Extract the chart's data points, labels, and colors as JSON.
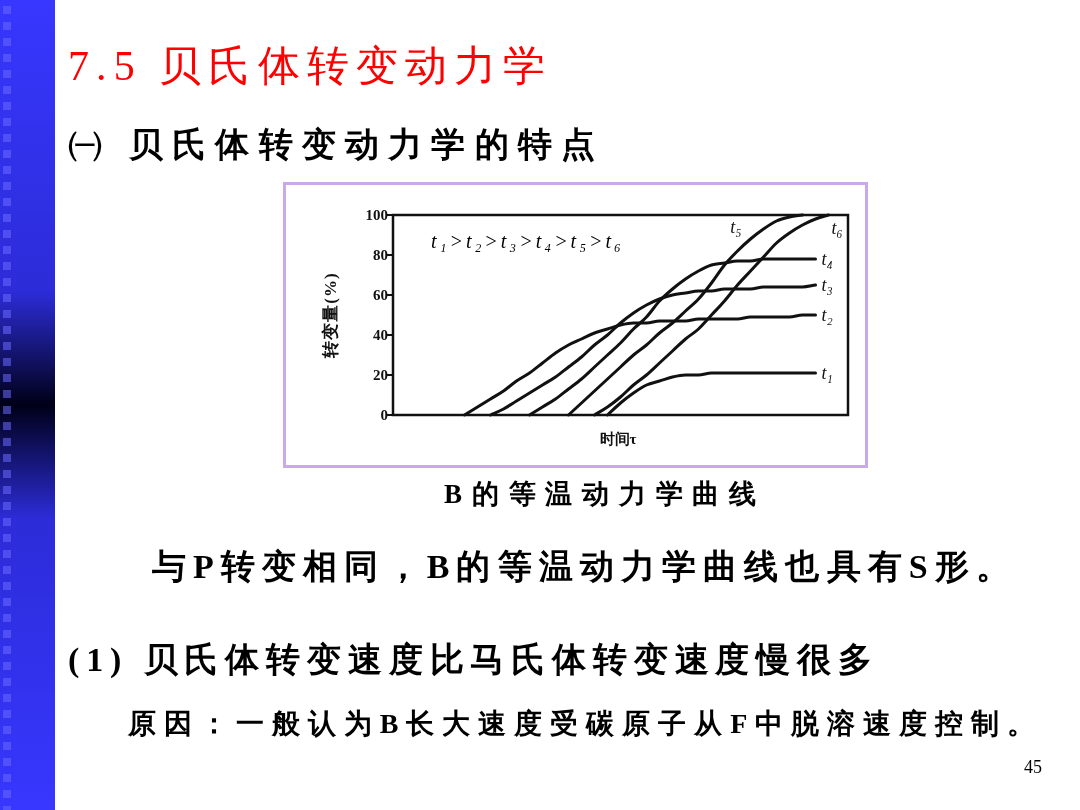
{
  "chart_data": {
    "type": "line",
    "title": "7.5 贝氏体转变动力学",
    "subtitle": "㈠ 贝氏体转变动力学的特点",
    "xlabel": "时间τ",
    "ylabel": "转变量(%)",
    "annotations": [
      "t₁>t₂>t₃>t₄>t₅>t₆",
      "B的等温动力学曲线",
      "与P转变相同，B的等温动力学曲线也具有S形。",
      "(1) 贝氏体转变速度比马氏体转变速度慢很多",
      "原因：一般认为B长大速度受碳原子从F中脱溶速度控制。",
      "45"
    ],
    "categories": [
      null,
      null,
      null,
      null,
      null,
      null,
      null,
      null,
      null,
      null,
      null,
      null,
      null,
      null,
      null,
      null,
      null,
      null,
      null,
      null,
      null,
      null,
      null,
      null,
      null,
      null,
      null,
      null,
      null,
      null,
      null,
      null,
      null,
      null,
      null
    ],
    "series": [
      {
        "name": "t₁",
        "color": "#111111",
        "values": [
          null,
          null,
          null,
          null,
          null,
          null,
          null,
          null,
          null,
          null,
          null,
          null,
          null,
          null,
          null,
          null,
          0,
          6,
          11,
          15,
          17,
          19,
          20,
          20,
          21,
          21,
          21,
          21,
          21,
          21,
          21,
          21,
          21,
          null,
          null
        ]
      },
      {
        "name": "t₂",
        "color": "#111111",
        "values": [
          null,
          null,
          null,
          null,
          null,
          0,
          4,
          8,
          12,
          17,
          21,
          26,
          31,
          35,
          38,
          41,
          43,
          45,
          46,
          46,
          47,
          47,
          47,
          48,
          48,
          48,
          48,
          49,
          49,
          49,
          49,
          50,
          50,
          null,
          null
        ]
      },
      {
        "name": "t₃",
        "color": "#111111",
        "values": [
          null,
          null,
          null,
          null,
          null,
          null,
          null,
          0,
          3,
          7,
          11,
          15,
          19,
          24,
          29,
          35,
          40,
          46,
          51,
          55,
          58,
          60,
          61,
          62,
          62,
          63,
          63,
          63,
          64,
          64,
          64,
          64,
          65,
          null,
          null
        ]
      },
      {
        "name": "t₄",
        "color": "#111111",
        "values": [
          null,
          null,
          null,
          null,
          null,
          null,
          null,
          null,
          null,
          null,
          0,
          4,
          8,
          13,
          18,
          24,
          30,
          36,
          43,
          49,
          57,
          63,
          68,
          72,
          75,
          76,
          77,
          77,
          78,
          78,
          78,
          78,
          78,
          null,
          null
        ]
      },
      {
        "name": "t₅",
        "color": "#111111",
        "values": [
          null,
          null,
          null,
          null,
          null,
          null,
          null,
          null,
          null,
          null,
          null,
          null,
          null,
          0,
          6,
          12,
          18,
          24,
          30,
          35,
          41,
          46,
          52,
          58,
          66,
          75,
          82,
          88,
          93,
          97,
          99,
          100,
          null,
          null,
          null
        ]
      },
      {
        "name": "t₆",
        "color": "#111111",
        "values": [
          null,
          null,
          null,
          null,
          null,
          null,
          null,
          null,
          null,
          null,
          null,
          null,
          null,
          null,
          null,
          0,
          4,
          9,
          15,
          20,
          26,
          32,
          38,
          43,
          50,
          57,
          65,
          72,
          79,
          86,
          91,
          95,
          98,
          100,
          null
        ]
      }
    ],
    "ylim": [
      0,
      100
    ],
    "yticks": [
      0,
      20,
      40,
      60,
      80,
      100
    ],
    "tick_labels": "y",
    "line_style": "solid"
  }
}
